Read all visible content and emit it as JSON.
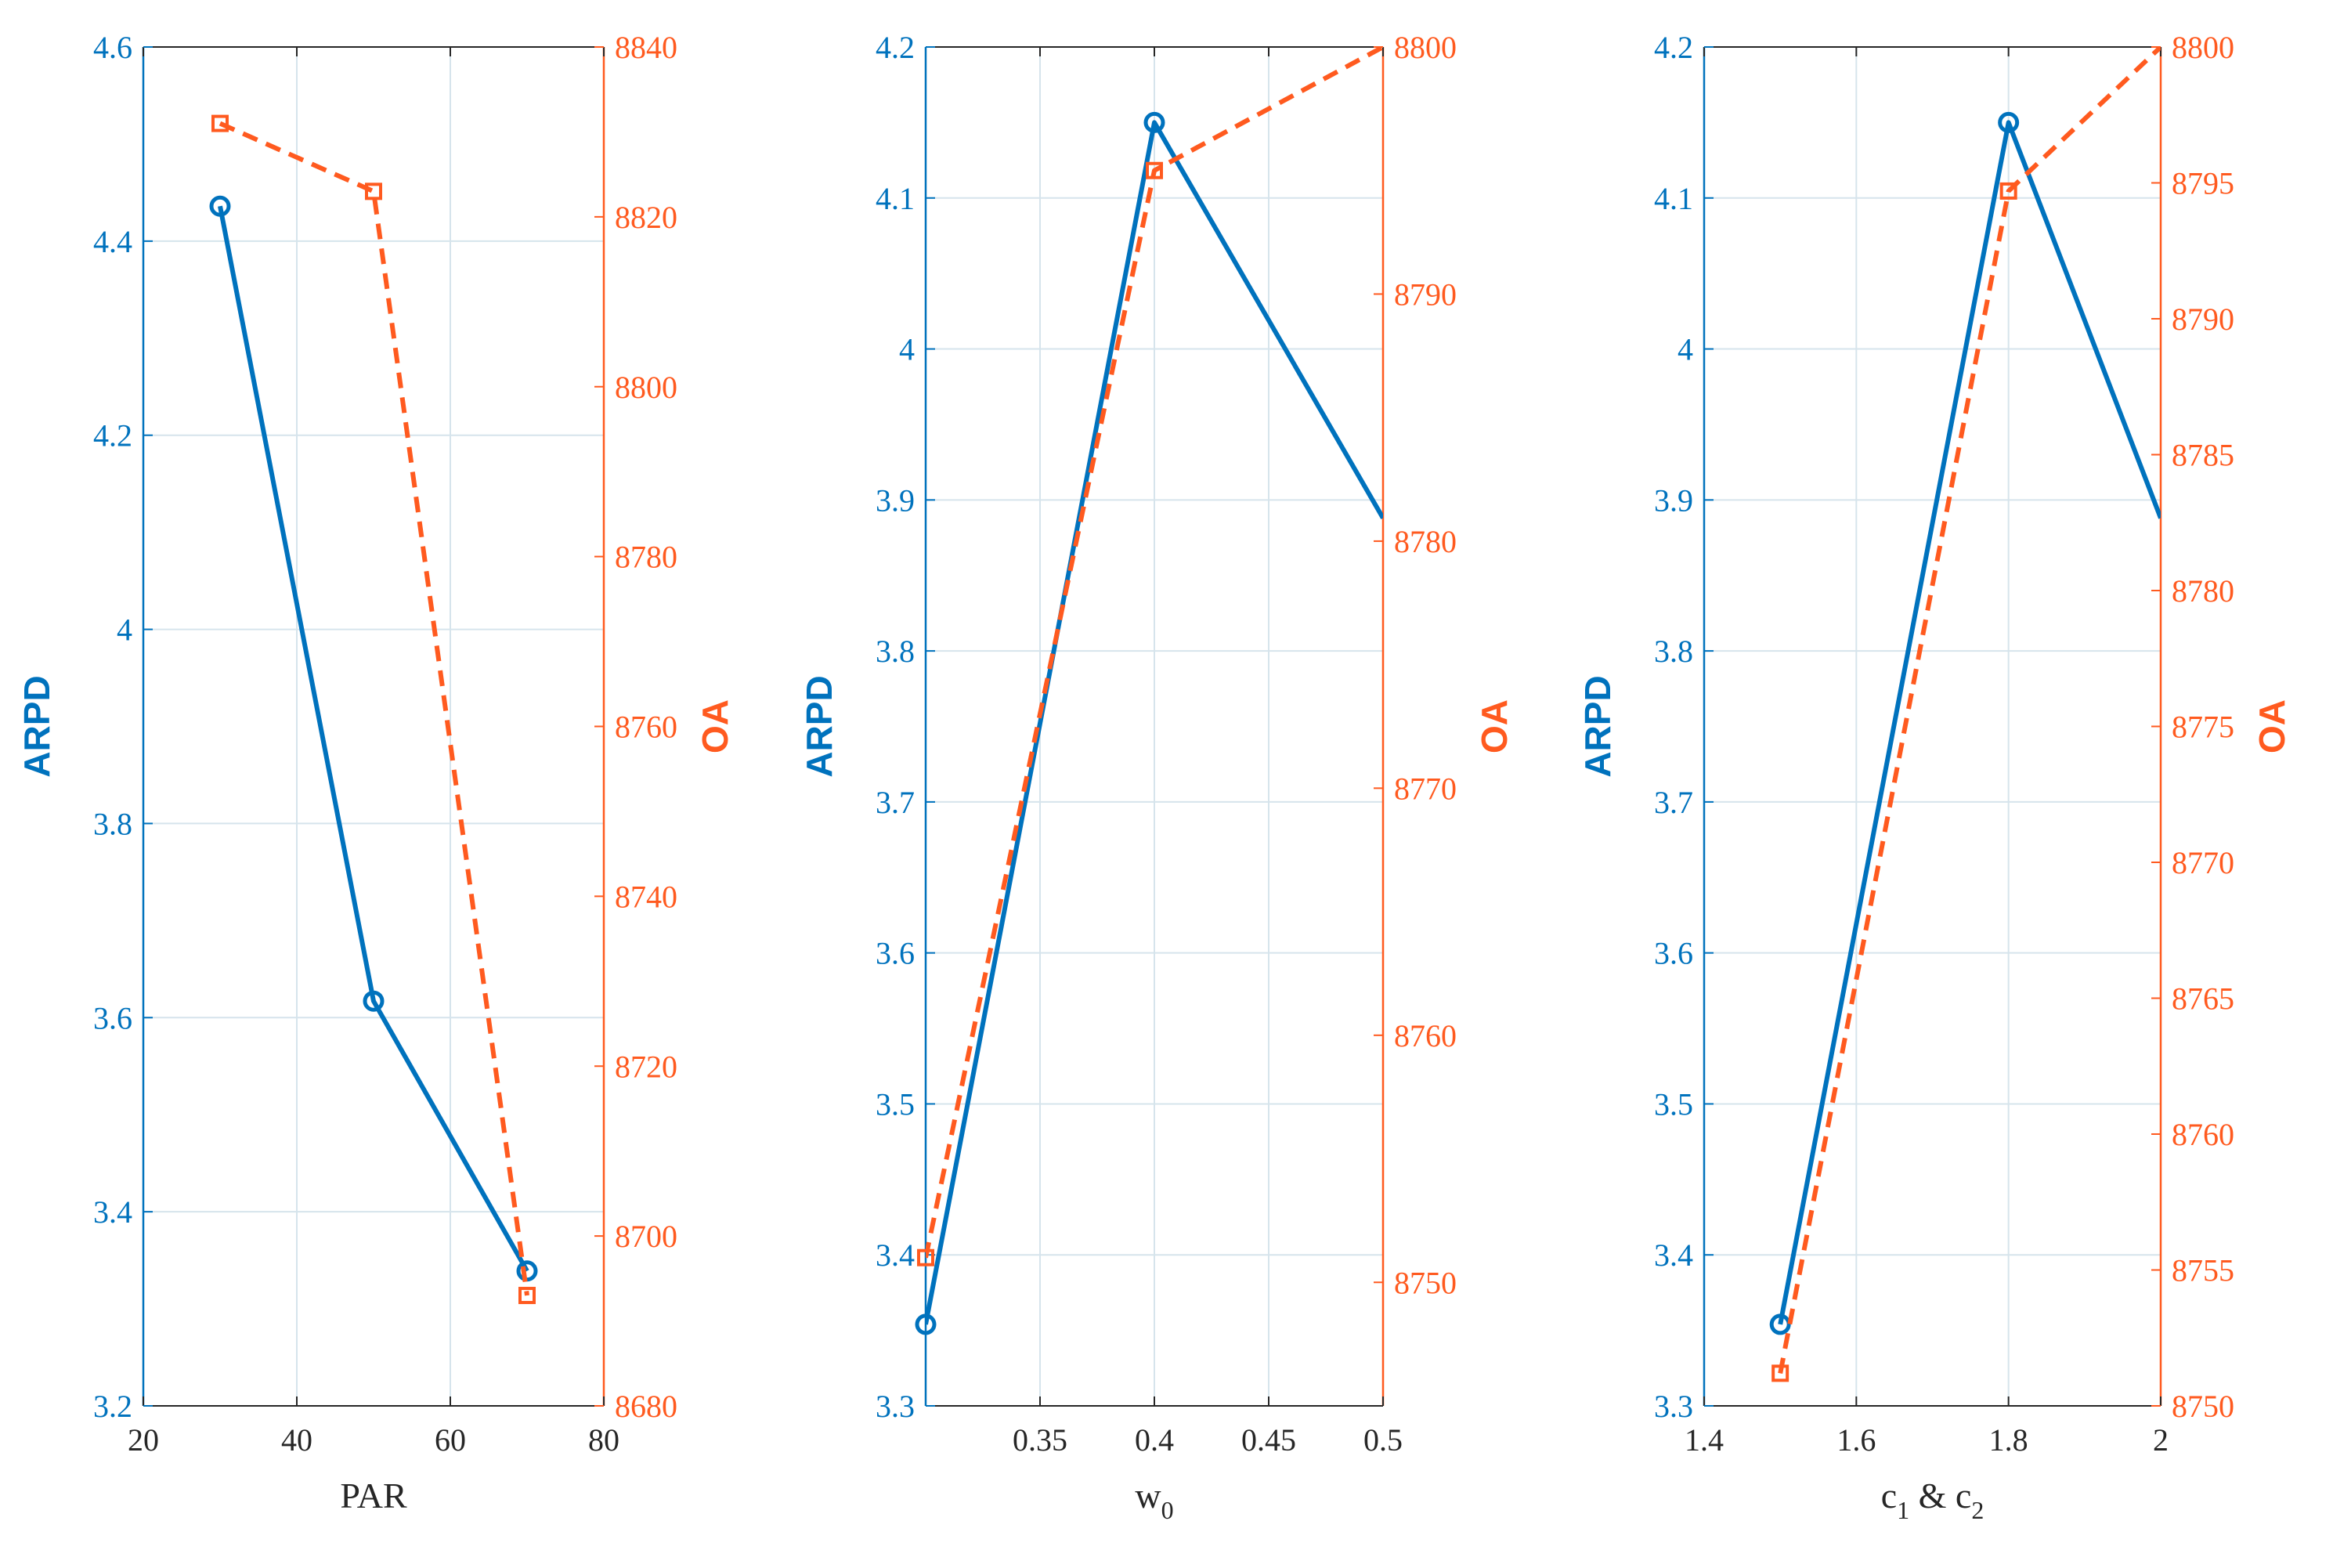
{
  "colors": {
    "left_axis": "#0072BD",
    "right_axis": "#FF5A1F",
    "grid": "#D6E4EC",
    "frame": "#262626"
  },
  "chart_data": [
    {
      "type": "line",
      "xlabel": "PAR",
      "xlim": [
        20,
        80
      ],
      "xticks": [
        "20",
        "40",
        "60",
        "80"
      ],
      "ylabel_left": "ARPD",
      "ylim_left": [
        3.2,
        4.6
      ],
      "yticks_left": [
        "3.2",
        "3.4",
        "3.6",
        "3.8",
        "4",
        "4.2",
        "4.4",
        "4.6"
      ],
      "ylabel_right": "OA",
      "ylim_right": [
        8680,
        8840
      ],
      "yticks_right": [
        "8680",
        "8700",
        "8720",
        "8740",
        "8760",
        "8780",
        "8800",
        "8820",
        "8840"
      ],
      "grid": true,
      "series": [
        {
          "axis": "left",
          "style": "solid-circle",
          "x": [
            30,
            50,
            70
          ],
          "y": [
            4.436,
            3.617,
            3.339
          ]
        },
        {
          "axis": "right",
          "style": "dashed-square",
          "x": [
            30,
            50,
            70
          ],
          "y": [
            8831,
            8823,
            8693
          ]
        }
      ]
    },
    {
      "type": "line",
      "xlabel": "w",
      "xlabel_sub": "0",
      "xlim": [
        0.3,
        0.5
      ],
      "xticks": [
        "0.35",
        "0.4",
        "0.45",
        "0.5"
      ],
      "ylabel_left": "ARPD",
      "ylim_left": [
        3.3,
        4.2
      ],
      "yticks_left": [
        "3.3",
        "3.4",
        "3.5",
        "3.6",
        "3.7",
        "3.8",
        "3.9",
        "4",
        "4.1",
        "4.2"
      ],
      "ylabel_right": "OA",
      "ylim_right": [
        8745,
        8800
      ],
      "yticks_right": [
        "8750",
        "8760",
        "8770",
        "8780",
        "8790",
        "8800"
      ],
      "grid": true,
      "series": [
        {
          "axis": "left",
          "style": "solid-circle",
          "x": [
            0.3,
            0.4,
            0.5
          ],
          "y": [
            3.354,
            4.15,
            3.888
          ]
        },
        {
          "axis": "right",
          "style": "dashed-square",
          "x": [
            0.3,
            0.4,
            0.5
          ],
          "y": [
            8751,
            8795,
            8800
          ]
        }
      ]
    },
    {
      "type": "line",
      "xlabel": "c",
      "xlabel_sub": "1",
      "xlabel_mid": " & c",
      "xlabel_sub2": "2",
      "xlim": [
        1.4,
        2
      ],
      "xticks": [
        "1.4",
        "1.6",
        "1.8",
        "2"
      ],
      "ylabel_left": "ARPD",
      "ylim_left": [
        3.3,
        4.2
      ],
      "yticks_left": [
        "3.3",
        "3.4",
        "3.5",
        "3.6",
        "3.7",
        "3.8",
        "3.9",
        "4",
        "4.1",
        "4.2"
      ],
      "ylabel_right": "OA",
      "ylim_right": [
        8750,
        8800
      ],
      "yticks_right": [
        "8750",
        "8755",
        "8760",
        "8765",
        "8770",
        "8775",
        "8780",
        "8785",
        "8790",
        "8795",
        "8800"
      ],
      "grid": true,
      "series": [
        {
          "axis": "left",
          "style": "solid-circle",
          "x": [
            1.5,
            1.8,
            2
          ],
          "y": [
            3.354,
            4.15,
            3.888
          ]
        },
        {
          "axis": "right",
          "style": "dashed-square",
          "x": [
            1.5,
            1.8,
            2
          ],
          "y": [
            8751.2,
            8794.7,
            8800
          ]
        }
      ]
    }
  ]
}
